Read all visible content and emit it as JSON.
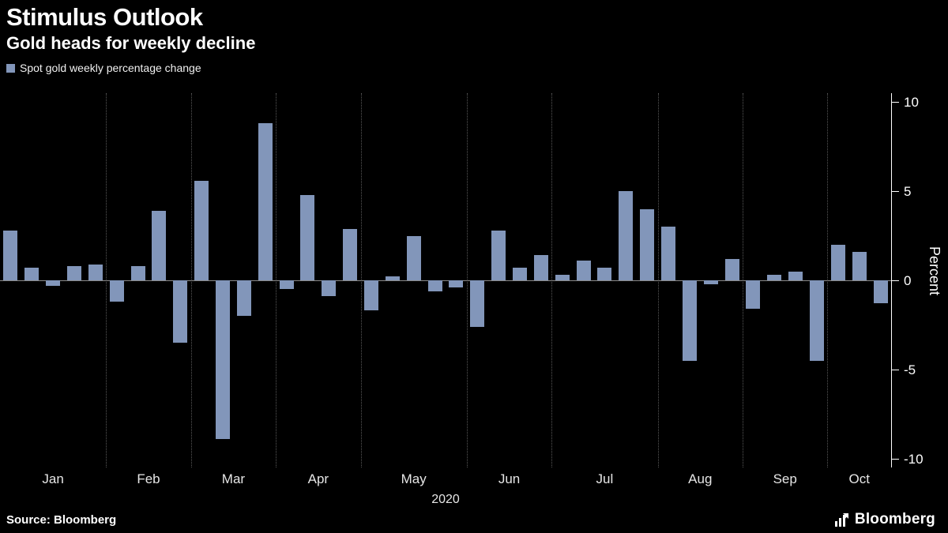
{
  "header": {
    "title": "Stimulus Outlook",
    "subtitle": "Gold heads for weekly decline"
  },
  "legend": {
    "label": "Spot gold weekly percentage change"
  },
  "footer": {
    "source": "Source: Bloomberg",
    "brand": "Bloomberg"
  },
  "chart_data": {
    "type": "bar",
    "title": "Spot gold weekly percentage change",
    "ylabel": "Percent",
    "xlabel_year": "2020",
    "ylim": [
      -10.5,
      10.5
    ],
    "yticks": [
      10,
      5,
      0,
      -5,
      -10
    ],
    "bar_color": "#8296ba",
    "grid": "vertical-dotted-month-boundaries",
    "legend_position": "top-left",
    "months": [
      {
        "label": "Jan",
        "weeks": 5
      },
      {
        "label": "Feb",
        "weeks": 4
      },
      {
        "label": "Mar",
        "weeks": 4
      },
      {
        "label": "Apr",
        "weeks": 4
      },
      {
        "label": "May",
        "weeks": 5
      },
      {
        "label": "Jun",
        "weeks": 4
      },
      {
        "label": "Jul",
        "weeks": 5
      },
      {
        "label": "Aug",
        "weeks": 4
      },
      {
        "label": "Sep",
        "weeks": 4
      },
      {
        "label": "Oct",
        "weeks": 3
      }
    ],
    "values": [
      2.8,
      0.7,
      -0.3,
      0.8,
      0.9,
      -1.2,
      0.8,
      3.9,
      -3.5,
      5.6,
      -8.9,
      -2.0,
      8.8,
      -0.5,
      4.8,
      -0.9,
      2.9,
      -1.7,
      0.2,
      2.5,
      -0.6,
      -0.4,
      -2.6,
      2.8,
      0.7,
      1.4,
      0.3,
      1.1,
      0.7,
      5.0,
      4.0,
      3.0,
      -4.5,
      -0.2,
      1.2,
      -1.6,
      0.3,
      0.5,
      -4.5,
      2.0,
      1.6,
      -1.3
    ]
  }
}
